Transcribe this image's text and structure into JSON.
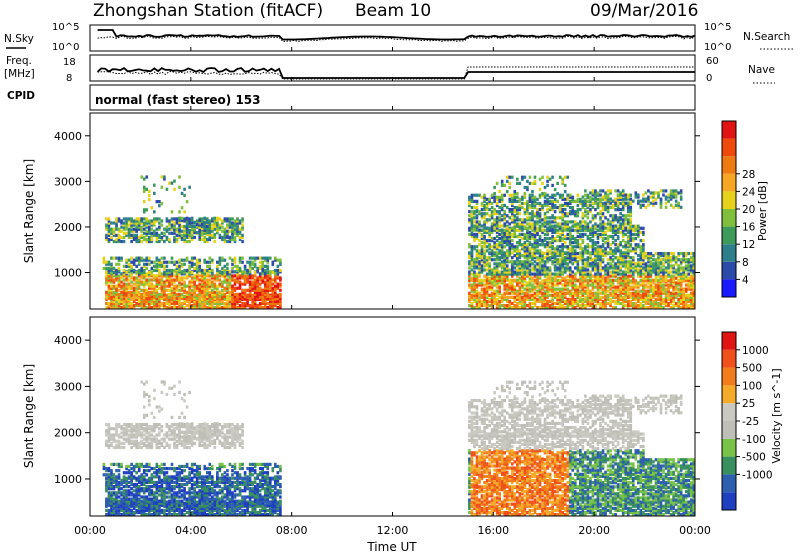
{
  "header": {
    "station": "Zhongshan Station (fitACF)",
    "beam": "Beam 10",
    "date": "09/Mar/2016"
  },
  "strips": {
    "nsky_label": "N.Sky",
    "nsky_ticks": [
      "10^5",
      "10^0"
    ],
    "nsearch_label": "N.Search",
    "nsearch_ticks": [
      "10^5",
      "10^0"
    ],
    "freq_label": "Freq.",
    "freq_unit": "[MHz]",
    "freq_ticks": [
      "18",
      "8"
    ],
    "nave_label": "Nave",
    "nave_ticks": [
      "60",
      "0"
    ],
    "cpid_label": "CPID",
    "cpid_text": "normal (fast stereo) 153"
  },
  "time_axis": {
    "ticks": [
      "00:00",
      "04:00",
      "08:00",
      "12:00",
      "16:00",
      "20:00",
      "00:00"
    ],
    "label": "Time UT"
  },
  "colors": {
    "power": [
      "#1a1aff",
      "#2c4aa8",
      "#2e7f8c",
      "#3c9a5a",
      "#7fbf3c",
      "#e6d21a",
      "#f5a623",
      "#f07a12",
      "#ee4a0c",
      "#e11414"
    ],
    "velocity": [
      "#e11414",
      "#f0501c",
      "#f07c1a",
      "#f5ab2a",
      "#c9c9c2",
      "#bfbfb8",
      "#79c24a",
      "#3a8f5e",
      "#2c5fae",
      "#1e3fbf"
    ]
  },
  "chart_data": [
    {
      "type": "heatmap",
      "title": "",
      "xlabel": "Time UT",
      "ylabel": "Slant Range [km]",
      "x_ticks": [
        "00:00",
        "04:00",
        "08:00",
        "12:00",
        "16:00",
        "20:00",
        "00:00"
      ],
      "xlim": [
        0,
        24
      ],
      "ylim": [
        200,
        4500
      ],
      "y_ticks": [
        1000,
        2000,
        3000,
        4000
      ],
      "colorbar": {
        "label": "Power [dB]",
        "range": [
          0,
          30
        ],
        "ticks": [
          4,
          8,
          12,
          16,
          20,
          24,
          28
        ]
      },
      "data_coverage_hours": [
        [
          0.5,
          7.6
        ],
        [
          15.0,
          24.0
        ]
      ]
    },
    {
      "type": "heatmap",
      "title": "",
      "xlabel": "Time UT",
      "ylabel": "Slant Range [km]",
      "x_ticks": [
        "00:00",
        "04:00",
        "08:00",
        "12:00",
        "16:00",
        "20:00",
        "00:00"
      ],
      "xlim": [
        0,
        24
      ],
      "ylim": [
        200,
        4500
      ],
      "y_ticks": [
        1000,
        2000,
        3000,
        4000
      ],
      "colorbar": {
        "label": "Velocity [m s^-1]",
        "ticks": [
          "1000",
          "500",
          "100",
          "25",
          "-25",
          "-100",
          "-500",
          "-1000"
        ]
      },
      "data_coverage_hours": [
        [
          0.5,
          7.6
        ],
        [
          15.0,
          24.0
        ]
      ]
    }
  ]
}
